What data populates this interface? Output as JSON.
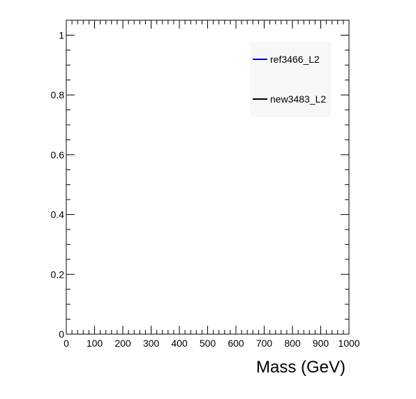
{
  "chart_data": {
    "type": "line",
    "title": "",
    "xlabel": "Mass (GeV)",
    "ylabel": "",
    "xlim": [
      0,
      1000
    ],
    "ylim": [
      0,
      1.05
    ],
    "x_ticks": [
      0,
      100,
      200,
      300,
      400,
      500,
      600,
      700,
      800,
      900,
      1000
    ],
    "x_tick_labels": [
      "0",
      "100",
      "200",
      "300",
      "400",
      "500",
      "600",
      "700",
      "800",
      "900",
      "1000"
    ],
    "y_ticks": [
      0,
      0.2,
      0.4,
      0.6,
      0.8,
      1
    ],
    "y_tick_labels": [
      "0",
      "0.2",
      "0.4",
      "0.6",
      "0.8",
      "1"
    ],
    "grid": false,
    "legend_position": "top-right",
    "series": [
      {
        "name": "ref3466_L2",
        "color": "#0000cc",
        "x": [],
        "y": []
      },
      {
        "name": "new3483_L2",
        "color": "#000000",
        "x": [],
        "y": []
      }
    ]
  }
}
